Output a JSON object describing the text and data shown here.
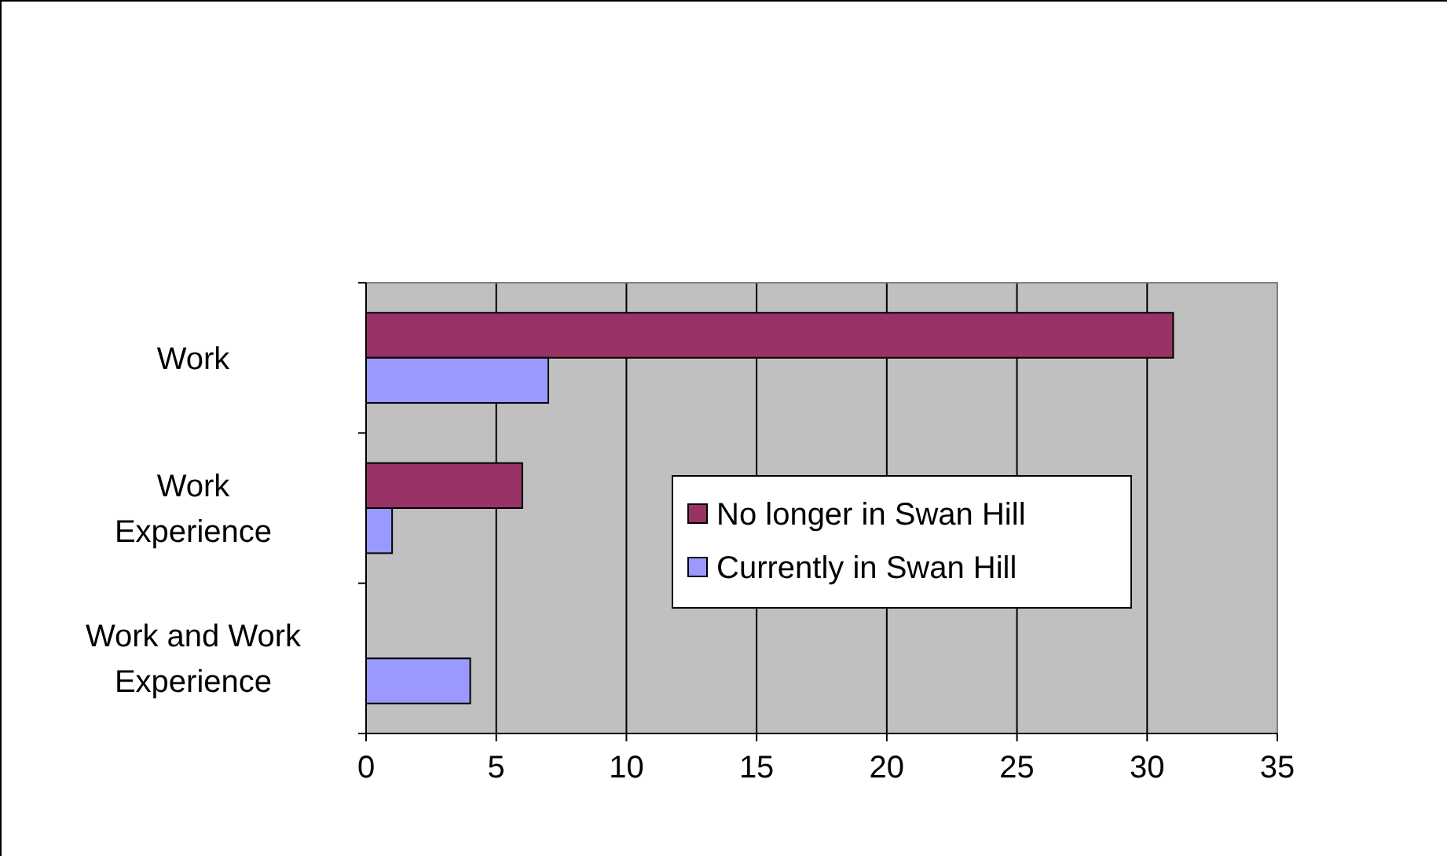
{
  "chart_data": {
    "type": "bar",
    "orientation": "horizontal",
    "categories": [
      "Work",
      "Work Experience",
      "Work and Work Experience"
    ],
    "series": [
      {
        "name": "No longer in Swan Hill",
        "color": "#993366",
        "values": [
          31,
          6,
          0
        ]
      },
      {
        "name": "Currently in Swan Hill",
        "color": "#9999ff",
        "values": [
          7,
          1,
          4
        ]
      }
    ],
    "xlim": [
      0,
      35
    ],
    "xticks": [
      0,
      5,
      10,
      15,
      20,
      25,
      30,
      35
    ],
    "grid": "x",
    "legend": "right"
  }
}
